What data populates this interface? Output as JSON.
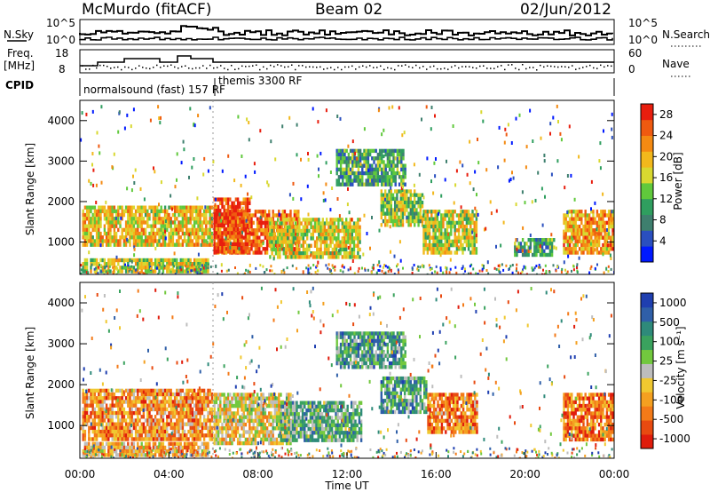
{
  "header": {
    "station": "McMurdo (fitACF)",
    "beam": "Beam 02",
    "date": "02/Jun/2012"
  },
  "summary": {
    "nsky_label": "N.Sky",
    "nsky_ticks": [
      "10^5",
      "10^0"
    ],
    "nsearch_label": "N.Search",
    "nsearch_ticks": [
      "10^5",
      "10^0"
    ],
    "freq_label": "Freq.",
    "freq_unit": "[MHz]",
    "freq_ticks": [
      "18",
      "8"
    ],
    "nave_label": "Nave",
    "nave_ticks": [
      "60",
      "0"
    ],
    "cpid_label": "CPID",
    "cpid_1": "normalsound (fast) 157 RF",
    "cpid_2": "themis 3300 RF"
  },
  "chart_data": [
    {
      "type": "heatmap",
      "quantity": "Power",
      "ylabel": "Slant Range [km]",
      "xlabel": "",
      "xlim": [
        0,
        24
      ],
      "ylim": [
        200,
        4500
      ],
      "yticks": [
        "1000",
        "2000",
        "3000",
        "4000"
      ],
      "colorbar_label": "Power [dB]",
      "colorbar_ticks": [
        "4",
        "8",
        "12",
        "16",
        "20",
        "24",
        "28"
      ],
      "colorbar_colors": [
        "#0019ff",
        "#2a4fbf",
        "#3e7f6e",
        "#2f9e5f",
        "#60c93c",
        "#d8d830",
        "#f2b81c",
        "#f48a12",
        "#ef5a10",
        "#e81e0e"
      ],
      "patches": [
        {
          "t0": 0.1,
          "t1": 5.9,
          "r0": 900,
          "r1": 1900,
          "level": 0.62
        },
        {
          "t0": 6.0,
          "t1": 9.8,
          "r0": 700,
          "r1": 1800,
          "level": 0.82
        },
        {
          "t0": 6.0,
          "t1": 7.6,
          "r0": 800,
          "r1": 2100,
          "level": 0.9
        },
        {
          "t0": 8.5,
          "t1": 12.6,
          "r0": 650,
          "r1": 1600,
          "level": 0.58
        },
        {
          "t0": 13.5,
          "t1": 15.4,
          "r0": 1400,
          "r1": 2300,
          "level": 0.5
        },
        {
          "t0": 15.4,
          "t1": 17.8,
          "r0": 700,
          "r1": 1800,
          "level": 0.55
        },
        {
          "t0": 19.5,
          "t1": 21.3,
          "r0": 700,
          "r1": 1100,
          "level": 0.35
        },
        {
          "t0": 21.7,
          "t1": 23.95,
          "r0": 700,
          "r1": 1800,
          "level": 0.7
        },
        {
          "t0": 0.1,
          "t1": 5.8,
          "r0": 250,
          "r1": 600,
          "level": 0.55
        },
        {
          "t0": 11.5,
          "t1": 14.6,
          "r0": 2400,
          "r1": 3300,
          "level": 0.35
        }
      ]
    },
    {
      "type": "heatmap",
      "quantity": "Velocity",
      "ylabel": "Slant Range [km]",
      "xlabel": "Time UT",
      "xlim": [
        0,
        24
      ],
      "ylim": [
        200,
        4500
      ],
      "xticks": [
        "00:00",
        "04:00",
        "08:00",
        "12:00",
        "16:00",
        "20:00",
        "00:00"
      ],
      "yticks": [
        "1000",
        "2000",
        "3000",
        "4000"
      ],
      "colorbar_label": "Velocity [m s⁻¹]",
      "colorbar_ticks": [
        "1000",
        "500",
        "100",
        "25",
        "-25",
        "-100",
        "-500",
        "-1000"
      ],
      "colorbar_colors": [
        "#1f3fb0",
        "#2f5fa8",
        "#2e8a7a",
        "#3aa25e",
        "#72c83e",
        "#bdbdbd",
        "#f0c830",
        "#f4a020",
        "#f37a18",
        "#e84a10",
        "#e01c0c"
      ],
      "patches": [
        {
          "t0": 0.1,
          "t1": 5.9,
          "r0": 700,
          "r1": 1900,
          "level": 0.72
        },
        {
          "t0": 6.0,
          "t1": 9.5,
          "r0": 600,
          "r1": 1800,
          "level": 0.58
        },
        {
          "t0": 9.0,
          "t1": 12.6,
          "r0": 650,
          "r1": 1600,
          "level": 0.34
        },
        {
          "t0": 13.5,
          "t1": 15.6,
          "r0": 1300,
          "r1": 2200,
          "level": 0.3
        },
        {
          "t0": 15.6,
          "t1": 17.8,
          "r0": 800,
          "r1": 1800,
          "level": 0.75
        },
        {
          "t0": 21.7,
          "t1": 23.95,
          "r0": 700,
          "r1": 1800,
          "level": 0.8
        },
        {
          "t0": 0.1,
          "t1": 5.8,
          "r0": 250,
          "r1": 600,
          "level": 0.65
        },
        {
          "t0": 11.5,
          "t1": 14.6,
          "r0": 2400,
          "r1": 3300,
          "level": 0.3
        }
      ]
    }
  ]
}
